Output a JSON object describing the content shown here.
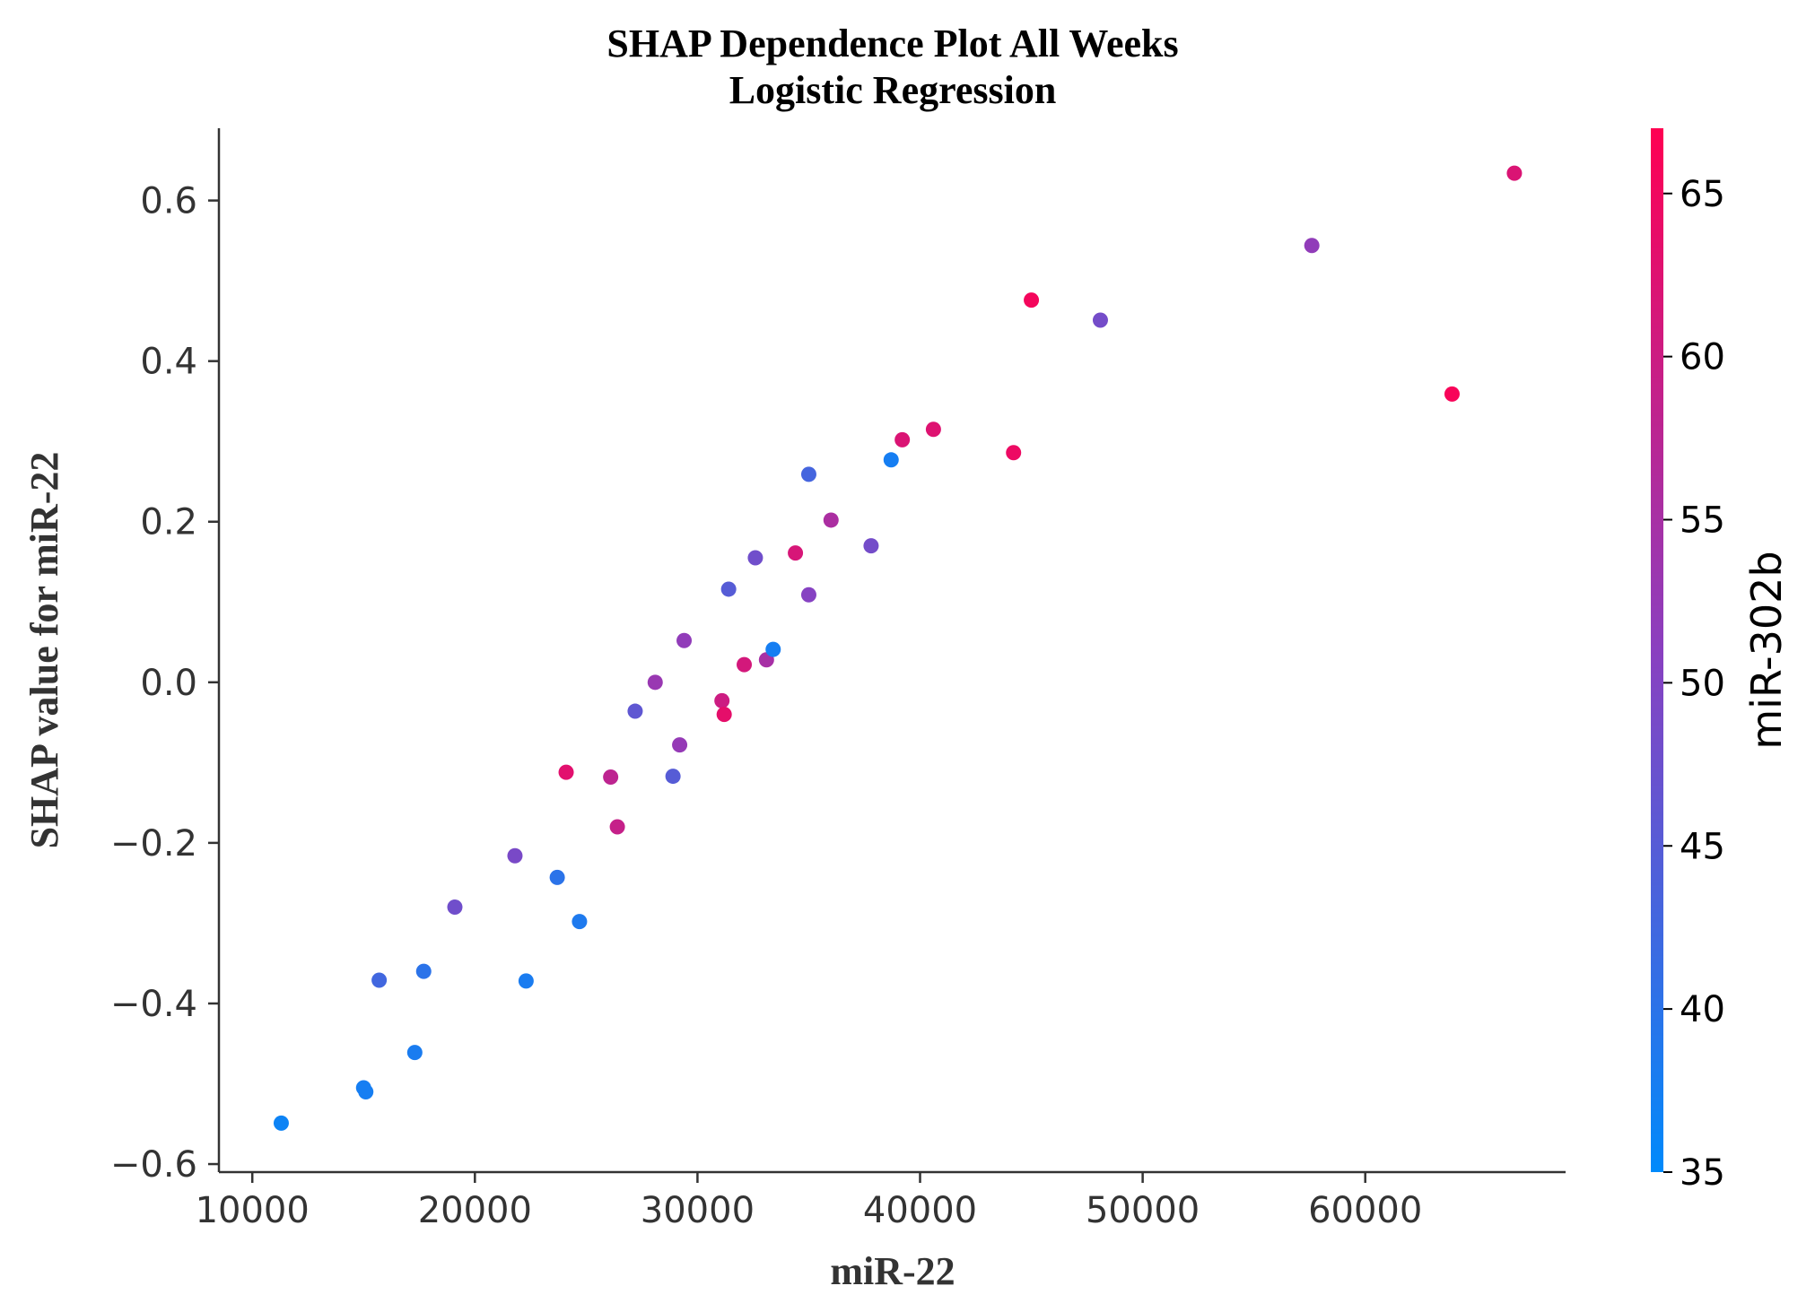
{
  "chart_data": {
    "type": "scatter",
    "title": "SHAP Dependence Plot All Weeks\nLogistic Regression",
    "xlabel": "miR-22",
    "ylabel": "SHAP value for miR-22",
    "xlim": [
      8500,
      69000
    ],
    "ylim": [
      -0.61,
      0.69
    ],
    "xticks": [
      10000,
      20000,
      30000,
      40000,
      50000,
      60000
    ],
    "xtick_labels": [
      "10000",
      "20000",
      "30000",
      "40000",
      "50000",
      "60000"
    ],
    "yticks": [
      0.6,
      0.4,
      0.2,
      0.0,
      -0.2,
      -0.4,
      -0.6
    ],
    "ytick_labels": [
      "0.6",
      "0.4",
      "0.2",
      "0.0",
      "−0.2",
      "−0.4",
      "−0.6"
    ],
    "grid": false,
    "colorbar": {
      "label": "miR-302b",
      "range": [
        35,
        67
      ],
      "ticks": [
        35,
        40,
        45,
        50,
        55,
        60,
        65
      ],
      "tick_labels": [
        "35",
        "40",
        "45",
        "50",
        "55",
        "60",
        "65"
      ],
      "low_color": "#008afb",
      "high_color": "#ff0052"
    },
    "points": [
      {
        "x": 11300,
        "y": -0.549,
        "c": 36.5
      },
      {
        "x": 15000,
        "y": -0.505,
        "c": 37.5
      },
      {
        "x": 15100,
        "y": -0.51,
        "c": 37.5
      },
      {
        "x": 15700,
        "y": -0.371,
        "c": 42.5
      },
      {
        "x": 17300,
        "y": -0.461,
        "c": 38.0
      },
      {
        "x": 17700,
        "y": -0.36,
        "c": 40.0
      },
      {
        "x": 19100,
        "y": -0.28,
        "c": 48.0
      },
      {
        "x": 21800,
        "y": -0.216,
        "c": 49.0
      },
      {
        "x": 22300,
        "y": -0.372,
        "c": 38.0
      },
      {
        "x": 23700,
        "y": -0.243,
        "c": 40.0
      },
      {
        "x": 24100,
        "y": -0.112,
        "c": 63.0
      },
      {
        "x": 24700,
        "y": -0.298,
        "c": 38.5
      },
      {
        "x": 26100,
        "y": -0.118,
        "c": 58.0
      },
      {
        "x": 26400,
        "y": -0.18,
        "c": 59.0
      },
      {
        "x": 27200,
        "y": -0.036,
        "c": 46.0
      },
      {
        "x": 28100,
        "y": 0.0,
        "c": 53.0
      },
      {
        "x": 28900,
        "y": -0.117,
        "c": 45.0
      },
      {
        "x": 29200,
        "y": -0.078,
        "c": 52.5
      },
      {
        "x": 29400,
        "y": 0.052,
        "c": 52.0
      },
      {
        "x": 31100,
        "y": -0.023,
        "c": 60.0
      },
      {
        "x": 31200,
        "y": -0.04,
        "c": 63.5
      },
      {
        "x": 31400,
        "y": 0.116,
        "c": 45.0
      },
      {
        "x": 32100,
        "y": 0.022,
        "c": 61.0
      },
      {
        "x": 32600,
        "y": 0.155,
        "c": 48.0
      },
      {
        "x": 33100,
        "y": 0.028,
        "c": 55.0
      },
      {
        "x": 33400,
        "y": 0.041,
        "c": 37.5
      },
      {
        "x": 34400,
        "y": 0.161,
        "c": 61.5
      },
      {
        "x": 35000,
        "y": 0.259,
        "c": 43.0
      },
      {
        "x": 35000,
        "y": 0.109,
        "c": 50.5
      },
      {
        "x": 36000,
        "y": 0.202,
        "c": 55.5
      },
      {
        "x": 37800,
        "y": 0.17,
        "c": 48.5
      },
      {
        "x": 38700,
        "y": 0.277,
        "c": 37.5
      },
      {
        "x": 39200,
        "y": 0.302,
        "c": 62.0
      },
      {
        "x": 40600,
        "y": 0.315,
        "c": 62.5
      },
      {
        "x": 44200,
        "y": 0.286,
        "c": 64.5
      },
      {
        "x": 45000,
        "y": 0.476,
        "c": 65.5
      },
      {
        "x": 48100,
        "y": 0.451,
        "c": 48.5
      },
      {
        "x": 57600,
        "y": 0.544,
        "c": 52.0
      },
      {
        "x": 63900,
        "y": 0.359,
        "c": 66.0
      },
      {
        "x": 66700,
        "y": 0.634,
        "c": 62.0
      }
    ]
  }
}
